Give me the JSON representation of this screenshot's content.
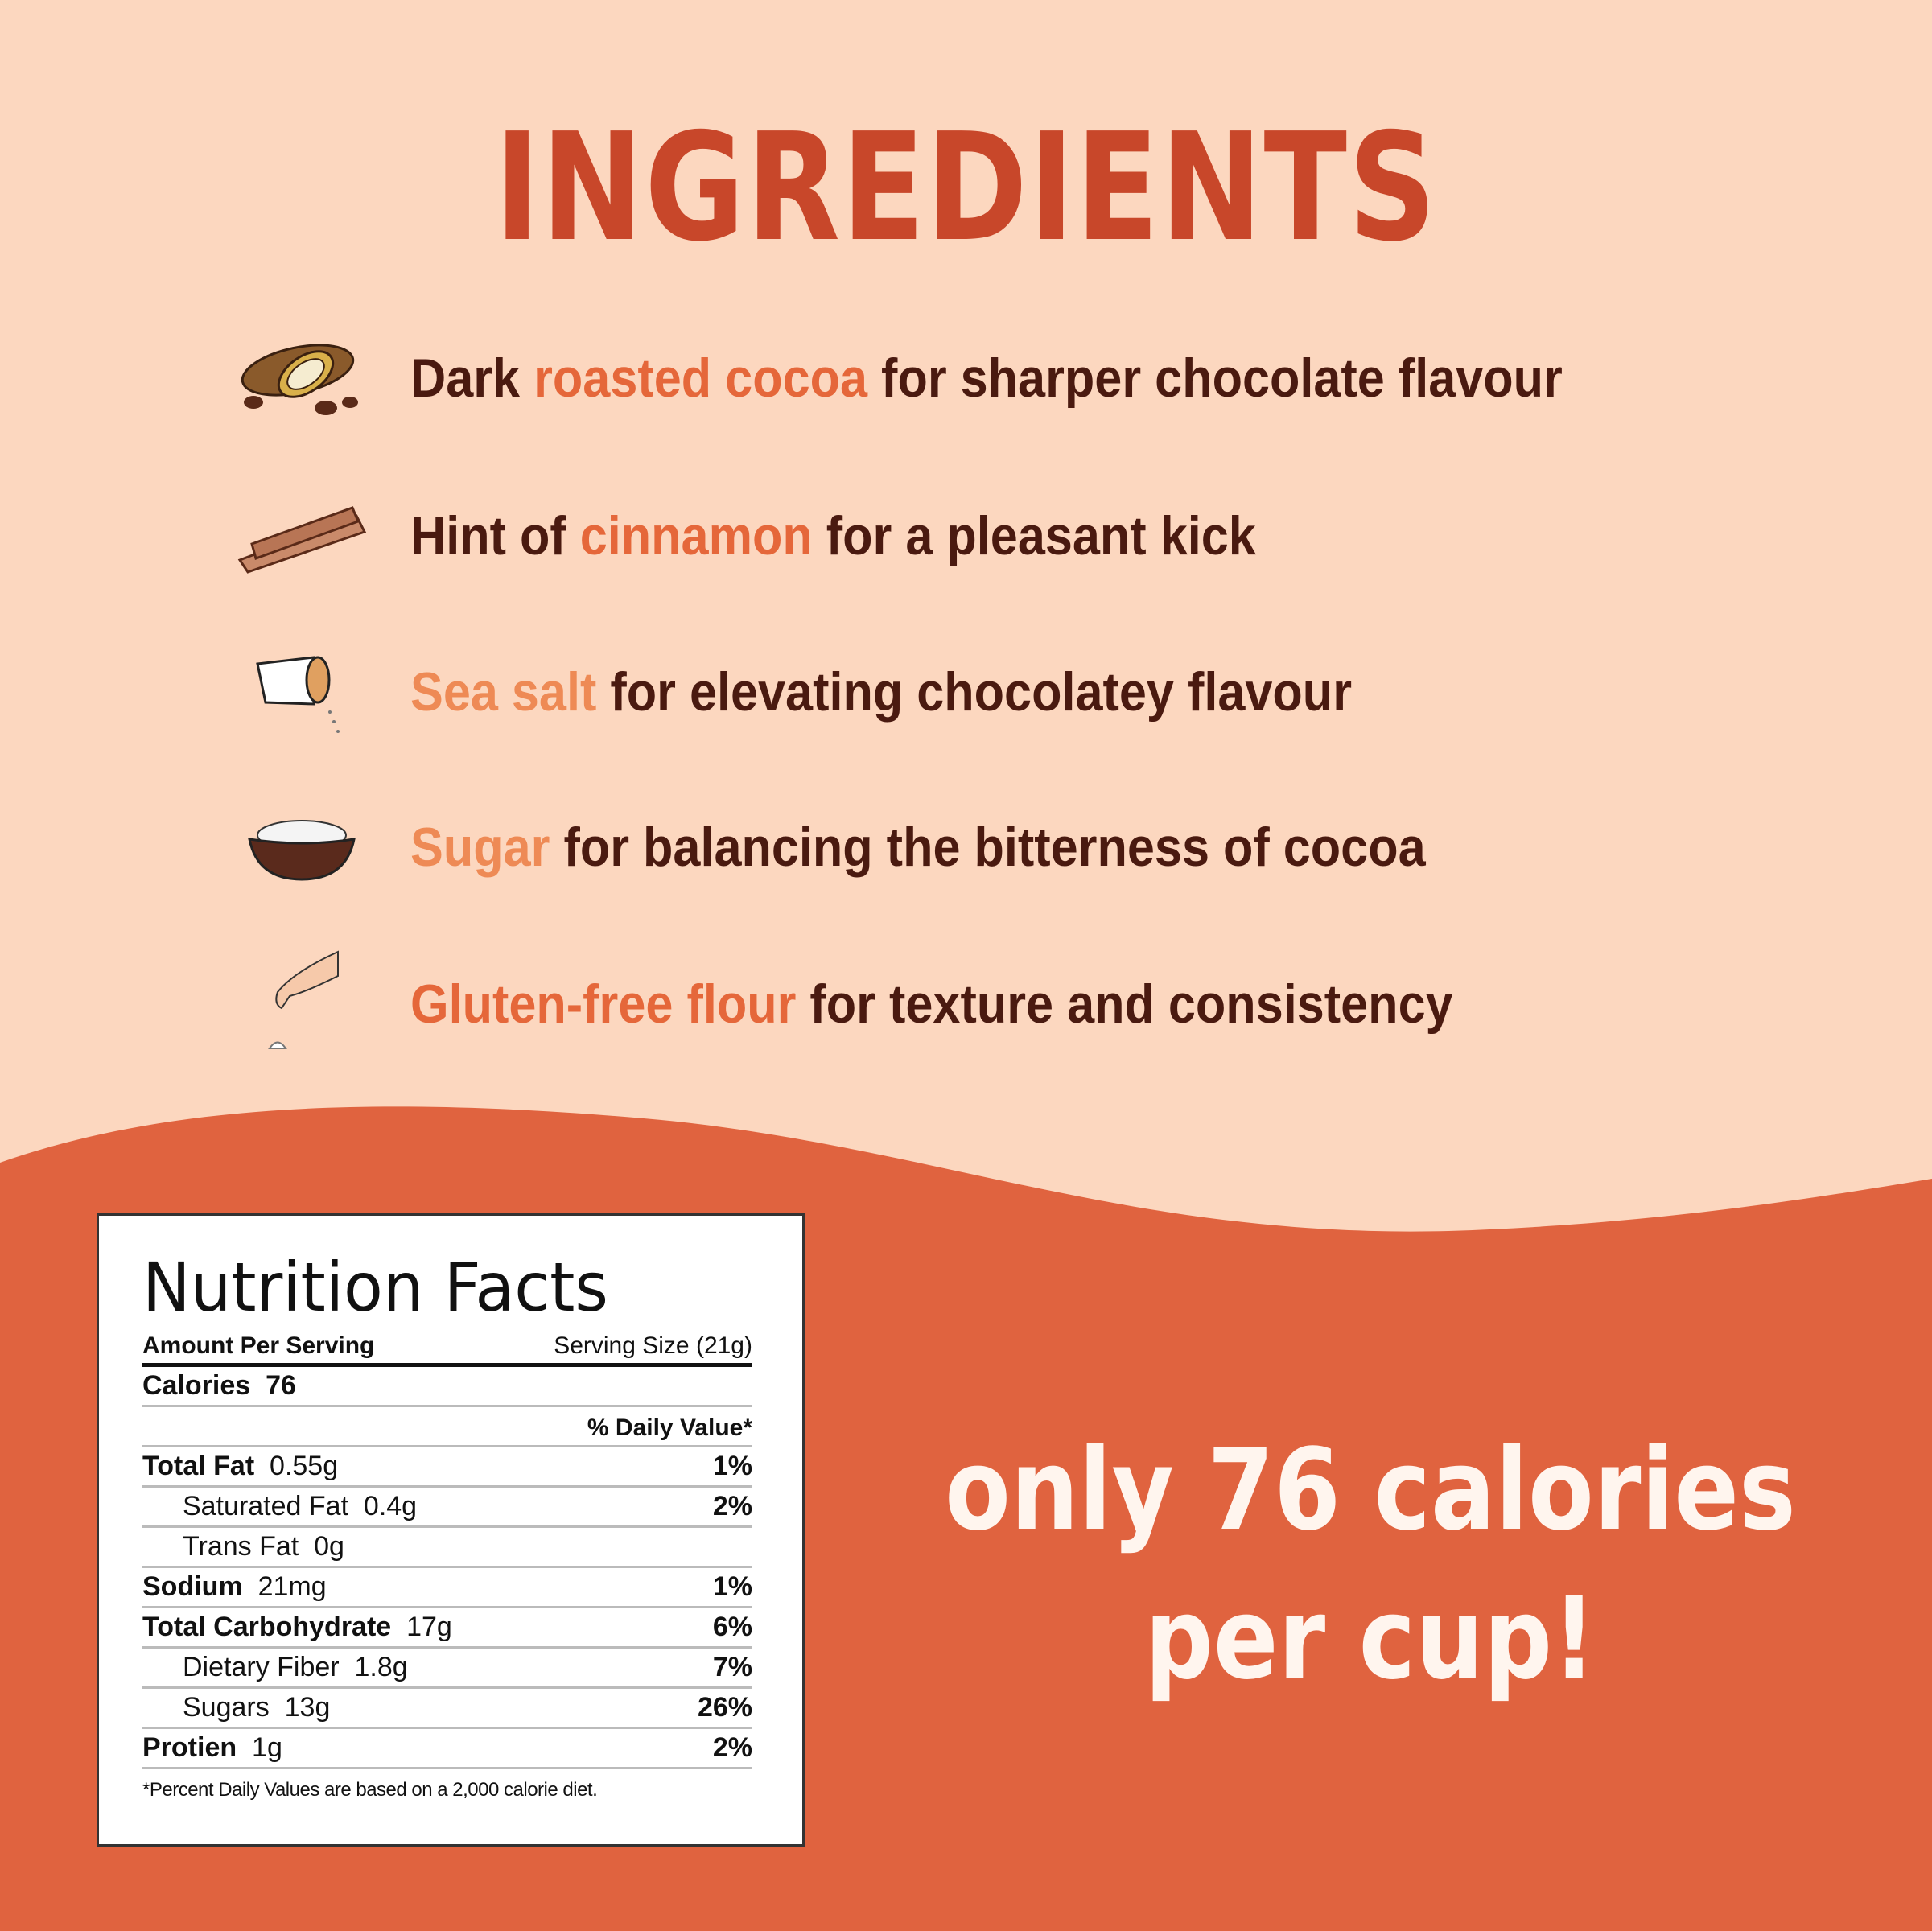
{
  "title": "INGREDIENTS",
  "colors": {
    "background": "#fcd7bf",
    "wave": "#e0633f",
    "title": "#c8472a",
    "text": "#4a1a10",
    "highlight": "#e5673a"
  },
  "ingredients": [
    {
      "icon": "cocoa-pod-icon",
      "highlight": "roasted cocoa",
      "pre": "Dark ",
      "post": " for sharper chocolate flavour"
    },
    {
      "icon": "cinnamon-sticks-icon",
      "highlight": "cinnamon",
      "pre": "Hint of ",
      "post": " for a pleasant kick"
    },
    {
      "icon": "salt-shaker-icon",
      "highlight": "Sea salt",
      "pre": "",
      "post": " for elevating chocolatey flavour"
    },
    {
      "icon": "sugar-bowl-icon",
      "highlight": "Sugar",
      "pre": "",
      "post": " for balancing the bitterness of cocoa"
    },
    {
      "icon": "hand-sprinkling-flour-icon",
      "highlight": "Gluten-free flour",
      "pre": "",
      "post": " for texture and consistency"
    }
  ],
  "nutrition": {
    "title": "Nutrition Facts",
    "amount_per_serving": "Amount Per Serving",
    "serving_size": "Serving Size (21g)",
    "calories_label": "Calories",
    "calories_value": "76",
    "daily_value_header": "% Daily Value*",
    "rows": [
      {
        "label": "Total Fat",
        "amount": "0.55g",
        "dv": "1%"
      },
      {
        "label": "Saturated Fat",
        "amount": "0.4g",
        "dv": "2%"
      },
      {
        "label": "Trans Fat",
        "amount": "0g",
        "dv": ""
      },
      {
        "label": "Sodium",
        "amount": "21mg",
        "dv": "1%"
      },
      {
        "label": "Total Carbohydrate",
        "amount": "17g",
        "dv": "6%"
      },
      {
        "label": "Dietary Fiber",
        "amount": "1.8g",
        "dv": "7%"
      },
      {
        "label": "Sugars",
        "amount": "13g",
        "dv": "26%"
      },
      {
        "label": "Protien",
        "amount": "1g",
        "dv": "2%"
      }
    ],
    "footnote": "*Percent Daily Values are based on a 2,000 calorie diet."
  },
  "callout": {
    "line1": "only 76 calories",
    "line2": "per cup!"
  }
}
